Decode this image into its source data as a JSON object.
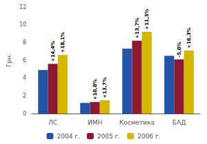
{
  "chart_data": {
    "type": "bar",
    "categories": [
      "ЛС",
      "ИМН",
      "Косметика",
      "БАД"
    ],
    "series": [
      {
        "name": "2004 г.",
        "color": "#2255aa",
        "values": [
          4.9,
          1.2,
          7.3,
          6.5
        ]
      },
      {
        "name": "2005 г.",
        "color": "#8b1a2e",
        "values": [
          5.6,
          1.3,
          8.2,
          6.1
        ],
        "annotations": [
          "+14,4%",
          "+10,8%",
          "+13,7%",
          "-5,0%"
        ]
      },
      {
        "name": "2006 г.",
        "color": "#d4b800",
        "values": [
          6.6,
          1.5,
          9.2,
          7.1
        ],
        "annotations": [
          "+18,1%",
          "+13,7%",
          "+11,3%",
          "+16,3%"
        ]
      }
    ],
    "ylabel": "Грн.",
    "ylim": [
      0,
      12
    ],
    "yticks": [
      0,
      2,
      4,
      6,
      8,
      10,
      12
    ],
    "grid": false,
    "legend": "bottom"
  }
}
